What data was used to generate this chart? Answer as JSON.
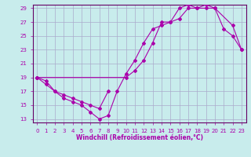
{
  "xlabel": "Windchill (Refroidissement éolien,°C)",
  "background_color": "#c8ecec",
  "grid_color": "#aaaacc",
  "line_color": "#aa00aa",
  "spine_color": "#660066",
  "xlim": [
    -0.5,
    23.5
  ],
  "ylim": [
    12.5,
    29.5
  ],
  "yticks": [
    13,
    15,
    17,
    19,
    21,
    23,
    25,
    27,
    29
  ],
  "xticks": [
    0,
    1,
    2,
    3,
    4,
    5,
    6,
    7,
    8,
    9,
    10,
    11,
    12,
    13,
    14,
    15,
    16,
    17,
    18,
    19,
    20,
    21,
    22,
    23
  ],
  "series1_x": [
    0,
    1,
    2,
    3,
    4,
    5,
    6,
    7,
    8,
    9,
    10,
    11,
    12,
    13,
    14,
    15,
    16,
    17,
    18,
    19,
    20,
    21,
    22,
    23
  ],
  "series1_y": [
    19.0,
    18.0,
    17.0,
    16.0,
    15.5,
    15.0,
    14.0,
    13.0,
    13.5,
    17.0,
    19.5,
    21.5,
    24.0,
    26.0,
    26.5,
    27.0,
    27.5,
    29.0,
    29.0,
    29.0,
    29.0,
    26.0,
    25.0,
    23.0
  ],
  "series2_x": [
    0,
    1,
    2,
    3,
    4,
    5,
    6,
    7,
    8
  ],
  "series2_y": [
    19.0,
    18.5,
    17.0,
    16.5,
    16.0,
    15.5,
    15.0,
    14.5,
    17.0
  ],
  "series3_x": [
    0,
    10,
    11,
    12,
    13,
    14,
    15,
    16,
    17,
    18,
    19,
    20,
    22,
    23
  ],
  "series3_y": [
    19.0,
    19.0,
    20.0,
    21.5,
    24.0,
    27.0,
    27.0,
    29.0,
    29.5,
    29.0,
    29.5,
    29.0,
    26.5,
    23.0
  ],
  "tick_fontsize": 5,
  "xlabel_fontsize": 5.5
}
